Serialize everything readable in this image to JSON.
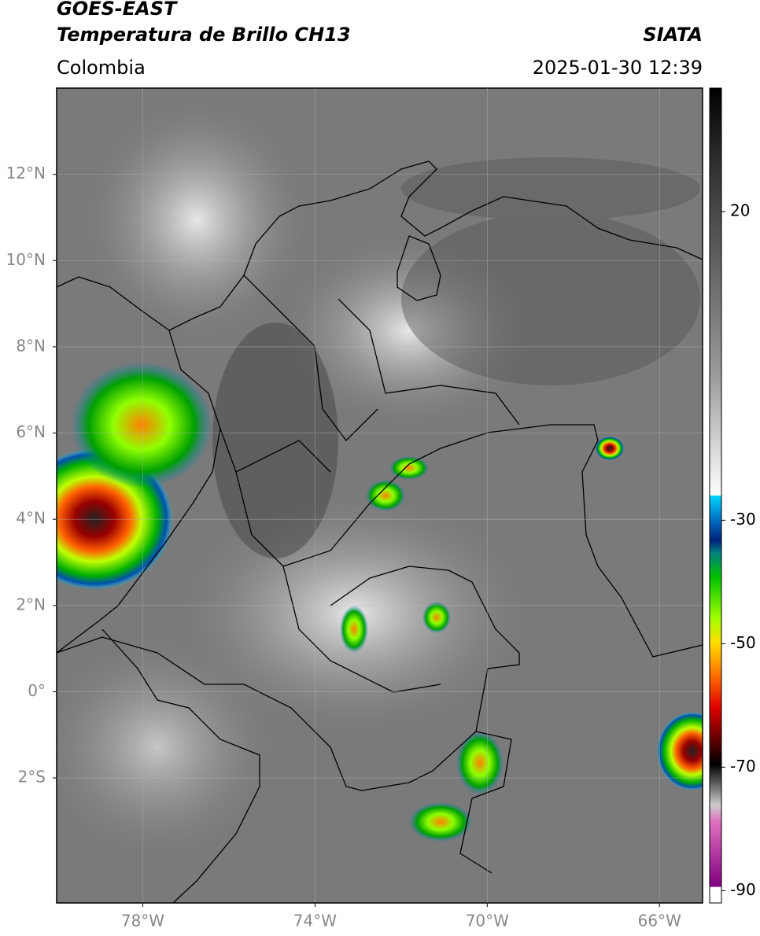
{
  "header": {
    "title": "GOES-EAST",
    "subtitle": "Temperatura de Brillo CH13",
    "region": "Colombia",
    "source": "SIATA",
    "datetime": "2025-01-30 12:39"
  },
  "map": {
    "xlim": [
      -80,
      -65
    ],
    "ylim": [
      -4.9,
      14
    ],
    "xticks": [
      {
        "value": -78,
        "label": "78°W"
      },
      {
        "value": -74,
        "label": "74°W"
      },
      {
        "value": -70,
        "label": "70°W"
      },
      {
        "value": -66,
        "label": "66°W"
      }
    ],
    "yticks": [
      {
        "value": 12,
        "label": "12°N"
      },
      {
        "value": 10,
        "label": "10°N"
      },
      {
        "value": 8,
        "label": "8°N"
      },
      {
        "value": 6,
        "label": "6°N"
      },
      {
        "value": 4,
        "label": "4°N"
      },
      {
        "value": 2,
        "label": "2°N"
      },
      {
        "value": 0,
        "label": "0°"
      },
      {
        "value": -2,
        "label": "2°S"
      }
    ],
    "grid": true
  },
  "colorbar": {
    "clim": [
      -92,
      40
    ],
    "ticks": [
      20,
      -30,
      -50,
      -70,
      -90
    ]
  }
}
